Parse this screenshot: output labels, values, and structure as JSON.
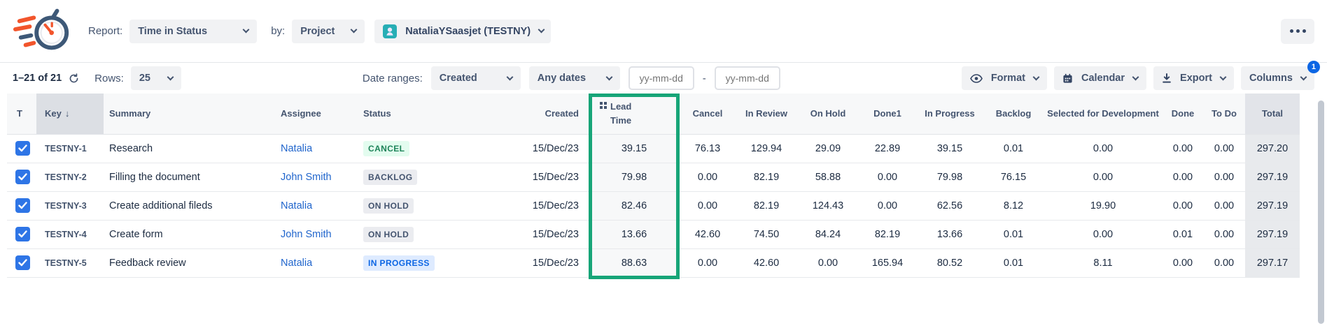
{
  "header": {
    "report_label": "Report:",
    "report_value": "Time in Status",
    "by_label": "by:",
    "by_value": "Project",
    "project_value": "NataliaYSaasjet (TESTNY)"
  },
  "toolbar": {
    "pagination": "1–21 of 21",
    "rows_label": "Rows:",
    "rows_value": "25",
    "date_ranges_label": "Date ranges:",
    "date_field": "Created",
    "date_preset": "Any dates",
    "date_from_placeholder": "yy-mm-dd",
    "range_separator": "-",
    "date_to_placeholder": "yy-mm-dd",
    "format_label": "Format",
    "calendar_label": "Calendar",
    "export_label": "Export",
    "columns_label": "Columns",
    "columns_badge": "1"
  },
  "table": {
    "columns": [
      "T",
      "Key",
      "Summary",
      "Assignee",
      "Status",
      "Created",
      "Lead Time",
      "Cancel",
      "In Review",
      "On Hold",
      "Done1",
      "In Progress",
      "Backlog",
      "Selected for Development",
      "Done",
      "To Do",
      "Total"
    ],
    "sort": {
      "column": "Key",
      "direction": "desc",
      "arrow": "↓"
    },
    "highlighted_column": "Lead Time",
    "rows": [
      {
        "selected": true,
        "key": "TESTNY-1",
        "summary": "Research",
        "assignee": "Natalia",
        "status": "CANCEL",
        "status_style": "green",
        "created": "15/Dec/23",
        "values": [
          "39.15",
          "76.13",
          "129.94",
          "29.09",
          "22.89",
          "39.15",
          "0.01",
          "0.00",
          "0.00",
          "0.00",
          "297.20"
        ]
      },
      {
        "selected": true,
        "key": "TESTNY-2",
        "summary": "Filling the document",
        "assignee": "John Smith",
        "status": "BACKLOG",
        "status_style": "grey",
        "created": "15/Dec/23",
        "values": [
          "79.98",
          "0.00",
          "82.19",
          "58.88",
          "0.00",
          "79.98",
          "76.15",
          "0.00",
          "0.00",
          "0.00",
          "297.19"
        ]
      },
      {
        "selected": true,
        "key": "TESTNY-3",
        "summary": "Create additional fileds",
        "assignee": "Natalia",
        "status": "ON HOLD",
        "status_style": "grey",
        "created": "15/Dec/23",
        "values": [
          "82.46",
          "0.00",
          "82.19",
          "124.43",
          "0.00",
          "62.56",
          "8.12",
          "19.90",
          "0.00",
          "0.00",
          "297.19"
        ]
      },
      {
        "selected": true,
        "key": "TESTNY-4",
        "summary": "Create form",
        "assignee": "John Smith",
        "status": "ON HOLD",
        "status_style": "grey",
        "created": "15/Dec/23",
        "values": [
          "13.66",
          "42.60",
          "74.50",
          "84.24",
          "82.19",
          "13.66",
          "0.01",
          "0.00",
          "0.01",
          "0.00",
          "297.19"
        ]
      },
      {
        "selected": true,
        "key": "TESTNY-5",
        "summary": "Feedback review",
        "assignee": "Natalia",
        "status": "IN PROGRESS",
        "status_style": "blue",
        "created": "15/Dec/23",
        "values": [
          "88.63",
          "0.00",
          "42.60",
          "0.00",
          "165.94",
          "80.52",
          "0.01",
          "8.11",
          "0.00",
          "0.00",
          "297.17"
        ]
      }
    ]
  },
  "icons": {
    "logo": "stopwatch-logo",
    "refresh": "refresh-icon",
    "format": "eye-icon",
    "calendar": "calendar-icon",
    "export": "download-icon",
    "columns_more": "more-horizontal-icon",
    "lead_header": "drag-handle-icon",
    "sort": "arrow-down-icon",
    "dropdowns": "chevron-down-icon"
  },
  "colors": {
    "highlight_green": "#17A578",
    "link_blue": "#2065CC",
    "checkbox_blue": "#2E75E6",
    "columns_badge_bg": "#0C66E4",
    "status_green_bg": "#E3FCEF",
    "status_green_text": "#1F845A",
    "status_grey_bg": "#EBECF0",
    "status_grey_text": "#44546F",
    "status_blue_bg": "#DEEBFF",
    "status_blue_text": "#0C66E4",
    "sorted_col_bg": "#DCDFE4",
    "total_col_bg": "#E8EAED",
    "logo_navy": "#3D5877",
    "logo_orange": "#F2552C"
  }
}
